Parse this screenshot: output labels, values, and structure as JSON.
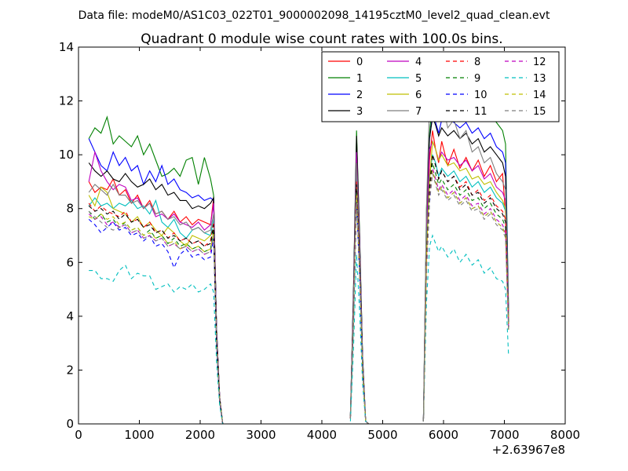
{
  "chart_data": {
    "type": "line",
    "suptitle": "Data file: modeM0/AS1C03_022T01_9000002098_14195cztM0_level2_quad_clean.evt",
    "title": "Quadrant 0 module wise count rates with 100.0s bins.",
    "xlabel": "",
    "ylabel": "",
    "xlim": [
      0,
      8000
    ],
    "ylim": [
      0,
      14
    ],
    "x_offset_label": "+2.63967e8",
    "xticks": [
      0,
      1000,
      2000,
      3000,
      4000,
      5000,
      6000,
      7000,
      8000
    ],
    "yticks": [
      0,
      2,
      4,
      6,
      8,
      10,
      12,
      14
    ],
    "grid": false,
    "legend_position": "top-right",
    "legend_columns": 4,
    "segments_x": [
      [
        170,
        270,
        370,
        470,
        570,
        670,
        770,
        870,
        970,
        1070,
        1170,
        1270,
        1370,
        1470,
        1570,
        1670,
        1770,
        1870,
        1970,
        2070,
        2170,
        2220,
        2270,
        2320,
        2370
      ],
      [
        4470,
        4520,
        4570,
        4620,
        4670,
        4720,
        4770
      ],
      [
        5670,
        5720,
        5770,
        5820,
        5870,
        5920,
        5970,
        6070,
        6170,
        6270,
        6370,
        6470,
        6570,
        6670,
        6770,
        6870,
        6970,
        7020,
        7070
      ]
    ],
    "series": [
      {
        "name": "0",
        "color": "#ff0000",
        "dash": false,
        "values": [
          [
            9.0,
            8.6,
            8.8,
            8.7,
            9.1,
            8.5,
            8.7,
            8.2,
            8.5,
            8.0,
            8.3,
            7.8,
            7.9,
            7.6,
            7.9,
            7.5,
            7.7,
            7.4,
            7.6,
            7.5,
            7.4,
            8.4,
            3.5,
            1.0,
            0
          ],
          [
            0.2,
            4.5,
            9.3,
            6.0,
            2.0,
            0.1,
            0
          ],
          [
            0.1,
            6.0,
            9.8,
            10.9,
            10.2,
            9.7,
            10.5,
            9.6,
            10.2,
            9.5,
            9.9,
            9.4,
            9.8,
            9.2,
            9.6,
            9.0,
            9.3,
            7.8,
            4.0
          ]
        ]
      },
      {
        "name": "1",
        "color": "#008000",
        "dash": false,
        "values": [
          [
            10.6,
            11.0,
            10.8,
            11.4,
            10.4,
            10.7,
            10.5,
            10.3,
            10.7,
            10.0,
            10.4,
            9.8,
            9.2,
            9.3,
            9.5,
            9.2,
            9.8,
            9.9,
            8.9,
            9.9,
            9.1,
            8.5,
            3.5,
            1.0,
            0
          ],
          [
            0.3,
            5.0,
            10.9,
            7.0,
            2.5,
            0.1,
            0
          ],
          [
            0.1,
            8.0,
            10.8,
            12.0,
            11.7,
            11.5,
            11.8,
            11.6,
            11.8,
            11.6,
            11.7,
            11.4,
            11.6,
            11.3,
            11.5,
            11.2,
            10.9,
            10.4,
            4.2
          ]
        ]
      },
      {
        "name": "2",
        "color": "#0000ff",
        "dash": false,
        "values": [
          [
            10.6,
            10.1,
            9.6,
            9.4,
            10.1,
            9.6,
            9.9,
            9.4,
            9.6,
            8.9,
            9.4,
            9.0,
            9.6,
            8.9,
            9.1,
            8.7,
            8.6,
            8.4,
            8.5,
            8.3,
            8.4,
            8.3,
            3.5,
            1.0,
            0
          ],
          [
            0.3,
            4.8,
            10.4,
            6.8,
            2.4,
            0.1,
            0
          ],
          [
            0.1,
            7.5,
            10.6,
            11.5,
            11.2,
            10.8,
            11.3,
            11.5,
            11.2,
            11.0,
            11.2,
            10.8,
            11.0,
            10.6,
            10.8,
            10.3,
            10.1,
            9.7,
            4.1
          ]
        ]
      },
      {
        "name": "3",
        "color": "#000000",
        "dash": false,
        "values": [
          [
            9.7,
            9.4,
            9.2,
            9.4,
            9.1,
            9.0,
            9.3,
            9.0,
            8.8,
            8.9,
            9.1,
            8.7,
            8.9,
            8.5,
            8.6,
            8.3,
            8.3,
            8.0,
            8.1,
            8.0,
            8.2,
            8.4,
            3.5,
            1.0,
            0
          ],
          [
            0.3,
            4.9,
            10.7,
            7.0,
            2.5,
            0.1,
            0
          ],
          [
            0.1,
            7.5,
            10.6,
            11.4,
            11.1,
            10.7,
            11.0,
            10.7,
            10.9,
            10.6,
            10.8,
            10.4,
            10.6,
            10.1,
            10.3,
            10.0,
            9.7,
            9.2,
            4.0
          ]
        ]
      },
      {
        "name": "4",
        "color": "#bf00bf",
        "dash": false,
        "values": [
          [
            9.0,
            10.1,
            9.4,
            9.0,
            8.7,
            8.9,
            8.8,
            8.3,
            8.4,
            8.0,
            8.2,
            7.7,
            7.8,
            7.6,
            7.8,
            7.5,
            7.4,
            7.3,
            7.5,
            7.2,
            7.4,
            8.2,
            3.4,
            1.0,
            0
          ],
          [
            0.3,
            4.6,
            10.1,
            6.6,
            2.3,
            0.1,
            0
          ],
          [
            0.1,
            7.0,
            10.2,
            10.5,
            10.2,
            9.8,
            10.1,
            9.8,
            9.9,
            9.6,
            9.8,
            9.4,
            9.6,
            9.1,
            9.3,
            8.8,
            8.6,
            8.3,
            4.0
          ]
        ]
      },
      {
        "name": "5",
        "color": "#00bfbf",
        "dash": false,
        "values": [
          [
            8.1,
            8.4,
            8.1,
            8.2,
            8.0,
            8.2,
            8.1,
            8.3,
            8.0,
            8.1,
            7.8,
            8.3,
            7.5,
            7.3,
            7.6,
            7.1,
            6.9,
            7.2,
            7.3,
            7.1,
            7.0,
            7.6,
            3.2,
            0.9,
            0
          ],
          [
            0.3,
            4.2,
            9.5,
            6.2,
            2.2,
            0.1,
            0
          ],
          [
            0.1,
            6.5,
            9.2,
            10.0,
            9.7,
            9.2,
            9.5,
            9.2,
            9.4,
            9.0,
            9.2,
            8.8,
            9.0,
            8.6,
            8.8,
            8.4,
            8.2,
            7.9,
            3.8
          ]
        ]
      },
      {
        "name": "6",
        "color": "#bfbf00",
        "dash": false,
        "values": [
          [
            8.5,
            8.1,
            8.8,
            8.6,
            8.0,
            7.9,
            7.8,
            7.5,
            7.7,
            7.3,
            7.5,
            7.2,
            7.0,
            7.3,
            7.1,
            6.8,
            6.6,
            7.0,
            6.9,
            6.8,
            7.0,
            7.2,
            3.1,
            0.9,
            0
          ],
          [
            0.3,
            4.0,
            9.0,
            6.0,
            2.1,
            0.1,
            0
          ],
          [
            0.1,
            6.3,
            9.0,
            10.5,
            10.2,
            9.8,
            10.0,
            9.6,
            9.7,
            9.4,
            9.5,
            9.1,
            9.2,
            8.9,
            9.0,
            8.6,
            8.3,
            8.0,
            3.9
          ]
        ]
      },
      {
        "name": "7",
        "color": "#7f7f7f",
        "dash": false,
        "values": [
          [
            8.6,
            8.9,
            8.7,
            8.5,
            8.9,
            8.5,
            8.5,
            8.2,
            8.3,
            8.0,
            8.2,
            7.8,
            7.9,
            7.6,
            7.7,
            7.4,
            7.5,
            7.2,
            7.3,
            7.1,
            7.2,
            7.8,
            3.3,
            1.0,
            0
          ],
          [
            0.3,
            4.4,
            9.7,
            6.4,
            2.3,
            0.1,
            0
          ],
          [
            0.1,
            8.0,
            12.0,
            13.8,
            12.5,
            11.5,
            12.0,
            11.0,
            11.3,
            10.6,
            10.9,
            10.1,
            10.3,
            9.7,
            9.9,
            9.3,
            9.0,
            8.7,
            4.0
          ]
        ]
      },
      {
        "name": "8",
        "color": "#ff0000",
        "dash": true,
        "values": [
          [
            8.2,
            7.9,
            8.1,
            7.9,
            7.8,
            7.7,
            7.9,
            7.5,
            7.6,
            7.3,
            7.5,
            7.1,
            7.2,
            6.9,
            7.1,
            6.8,
            6.9,
            6.7,
            6.8,
            6.6,
            6.8,
            7.5,
            3.1,
            0.9,
            0
          ],
          [
            0.2,
            4.0,
            9.0,
            5.9,
            2.1,
            0.1,
            0
          ],
          [
            0.1,
            6.1,
            8.8,
            10.0,
            9.6,
            9.1,
            9.4,
            9.0,
            9.2,
            8.8,
            9.0,
            8.5,
            8.7,
            8.3,
            8.5,
            8.1,
            7.9,
            7.6,
            3.7
          ]
        ]
      },
      {
        "name": "9",
        "color": "#008000",
        "dash": true,
        "values": [
          [
            7.9,
            7.6,
            7.8,
            7.5,
            7.6,
            7.3,
            7.5,
            7.2,
            7.3,
            7.0,
            7.2,
            6.9,
            7.0,
            6.7,
            6.9,
            6.6,
            6.7,
            6.5,
            6.6,
            6.4,
            6.5,
            7.2,
            3.0,
            0.9,
            0
          ],
          [
            0.2,
            3.8,
            8.6,
            5.7,
            2.0,
            0.1,
            0
          ],
          [
            0.1,
            5.8,
            8.5,
            9.7,
            9.3,
            8.9,
            9.1,
            8.7,
            8.9,
            8.5,
            8.7,
            8.3,
            8.4,
            8.0,
            8.2,
            7.8,
            7.6,
            7.3,
            3.6
          ]
        ]
      },
      {
        "name": "10",
        "color": "#0000ff",
        "dash": true,
        "values": [
          [
            7.6,
            7.4,
            7.1,
            7.3,
            7.5,
            7.2,
            7.3,
            7.0,
            7.1,
            6.8,
            7.0,
            6.6,
            6.7,
            6.4,
            5.8,
            6.3,
            6.5,
            6.2,
            6.3,
            6.1,
            6.2,
            6.9,
            2.9,
            0.8,
            0
          ],
          [
            0.2,
            3.6,
            8.2,
            5.5,
            1.9,
            0.1,
            0
          ],
          [
            0.1,
            5.6,
            8.2,
            9.4,
            9.0,
            8.6,
            8.8,
            8.4,
            8.6,
            8.2,
            8.4,
            8.0,
            8.1,
            7.7,
            7.9,
            7.5,
            7.3,
            7.0,
            3.5
          ]
        ]
      },
      {
        "name": "11",
        "color": "#000000",
        "dash": true,
        "values": [
          [
            8.1,
            7.9,
            8.0,
            7.8,
            7.9,
            7.6,
            7.8,
            7.5,
            7.6,
            7.3,
            7.4,
            7.1,
            7.2,
            6.9,
            7.0,
            6.8,
            6.9,
            6.7,
            6.8,
            6.6,
            6.7,
            7.4,
            3.1,
            0.9,
            0
          ],
          [
            0.2,
            4.0,
            8.9,
            5.9,
            2.1,
            0.1,
            0
          ],
          [
            0.1,
            6.0,
            8.8,
            10.0,
            9.6,
            9.1,
            9.4,
            9.0,
            9.2,
            8.7,
            8.9,
            8.5,
            8.6,
            8.2,
            8.4,
            8.0,
            7.8,
            7.5,
            3.6
          ]
        ]
      },
      {
        "name": "12",
        "color": "#bf00bf",
        "dash": true,
        "values": [
          [
            7.8,
            7.6,
            7.7,
            7.4,
            7.5,
            7.3,
            7.4,
            7.1,
            7.2,
            6.9,
            7.0,
            6.8,
            6.9,
            6.6,
            6.7,
            6.5,
            6.6,
            6.4,
            6.5,
            6.3,
            6.4,
            7.1,
            3.0,
            0.9,
            0
          ],
          [
            0.2,
            3.8,
            8.5,
            5.6,
            2.0,
            0.1,
            0
          ],
          [
            0.1,
            5.8,
            8.4,
            9.5,
            9.1,
            8.7,
            8.9,
            8.5,
            8.7,
            8.3,
            8.5,
            8.1,
            8.2,
            7.8,
            8.0,
            7.6,
            7.4,
            7.1,
            3.5
          ]
        ]
      },
      {
        "name": "13",
        "color": "#00bfbf",
        "dash": true,
        "values": [
          [
            5.7,
            5.7,
            5.4,
            5.4,
            5.3,
            5.7,
            5.9,
            5.4,
            5.6,
            5.5,
            5.5,
            5.0,
            5.1,
            5.2,
            4.9,
            5.1,
            5.0,
            5.2,
            4.9,
            5.0,
            5.2,
            4.9,
            2.3,
            0.7,
            0
          ],
          [
            0.1,
            2.8,
            6.3,
            4.2,
            1.5,
            0.1,
            0
          ],
          [
            0.1,
            4.5,
            6.6,
            7.0,
            6.7,
            6.4,
            6.6,
            6.2,
            6.5,
            6.0,
            6.3,
            5.9,
            6.1,
            5.6,
            5.8,
            5.4,
            5.3,
            5.0,
            2.5
          ]
        ]
      },
      {
        "name": "14",
        "color": "#bfbf00",
        "dash": true,
        "values": [
          [
            7.7,
            7.6,
            7.8,
            7.6,
            7.7,
            7.4,
            7.5,
            7.2,
            7.3,
            7.0,
            7.1,
            6.9,
            7.0,
            6.7,
            6.8,
            6.5,
            6.7,
            6.5,
            6.6,
            6.4,
            6.5,
            7.1,
            3.0,
            0.9,
            0
          ],
          [
            0.2,
            3.8,
            8.5,
            5.6,
            2.0,
            0.1,
            0
          ],
          [
            0.1,
            5.7,
            8.3,
            9.4,
            9.0,
            8.6,
            8.8,
            8.4,
            8.6,
            8.2,
            8.4,
            8.0,
            8.1,
            7.7,
            7.9,
            7.5,
            7.3,
            7.0,
            3.5
          ]
        ]
      },
      {
        "name": "15",
        "color": "#7f7f7f",
        "dash": true,
        "values": [
          [
            7.9,
            7.7,
            7.5,
            7.3,
            7.2,
            7.3,
            7.4,
            7.1,
            7.2,
            6.9,
            7.0,
            6.8,
            6.9,
            6.6,
            6.7,
            6.5,
            6.6,
            6.4,
            6.5,
            6.3,
            6.4,
            7.0,
            3.0,
            0.9,
            0
          ],
          [
            0.2,
            3.7,
            8.4,
            5.6,
            2.0,
            0.1,
            0
          ],
          [
            0.1,
            5.7,
            8.3,
            9.3,
            8.9,
            8.5,
            8.7,
            8.3,
            8.5,
            8.1,
            8.3,
            7.9,
            8.0,
            7.6,
            7.8,
            7.4,
            7.2,
            6.9,
            3.4
          ]
        ]
      }
    ]
  }
}
